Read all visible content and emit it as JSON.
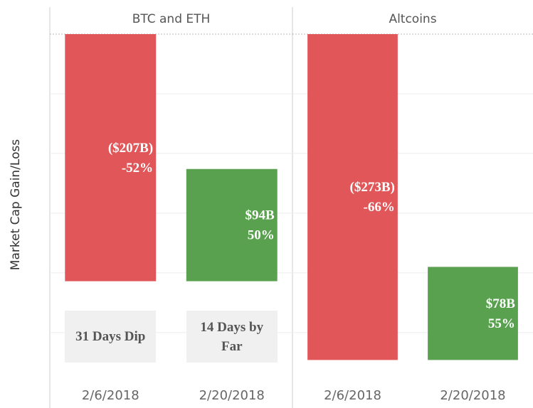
{
  "y_label": "Market Cap Gain/Loss",
  "chart_data": [
    {
      "type": "waterfall",
      "title": "BTC and ETH",
      "categories": [
        "2/6/2018",
        "2/20/2018"
      ],
      "values": [
        -207,
        94
      ],
      "value_labels": [
        "($207B)",
        "$94B"
      ],
      "percents": [
        -52,
        50
      ],
      "percent_labels": [
        "-52%",
        "50%"
      ],
      "colors": [
        "#e15759",
        "#59a14f"
      ],
      "annotations": [
        "31 Days Dip",
        "14 Days by Far"
      ],
      "ylim": [
        -290,
        0
      ],
      "yticks": [
        0,
        -50,
        -100,
        -150,
        -200,
        -250
      ],
      "grid": true
    },
    {
      "type": "waterfall",
      "title": "Altcoins",
      "categories": [
        "2/6/2018",
        "2/20/2018"
      ],
      "values": [
        -273,
        78
      ],
      "value_labels": [
        "($273B)",
        "$78B"
      ],
      "percents": [
        -66,
        55
      ],
      "percent_labels": [
        "-66%",
        "55%"
      ],
      "colors": [
        "#e15759",
        "#59a14f"
      ],
      "ylim": [
        -290,
        0
      ],
      "yticks": [
        0,
        -50,
        -100,
        -150,
        -200,
        -250
      ],
      "grid": true
    }
  ]
}
